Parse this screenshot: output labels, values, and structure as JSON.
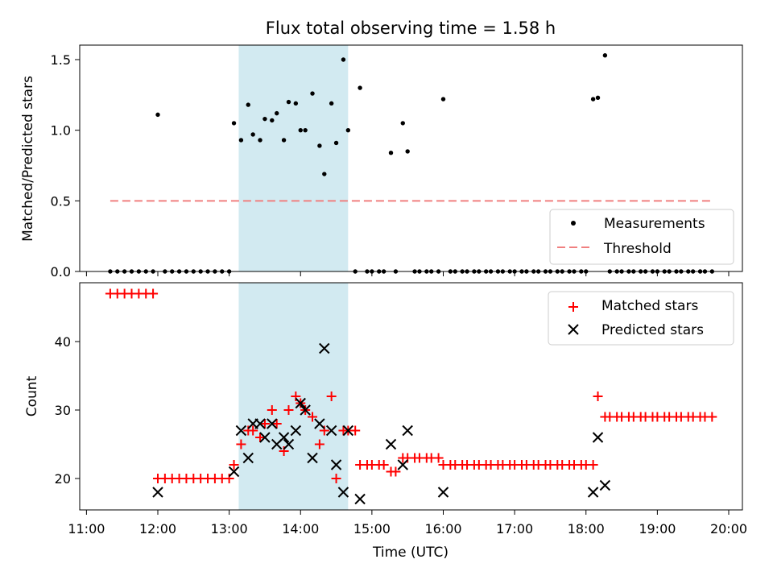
{
  "chart_data": [
    {
      "type": "scatter",
      "title": "Flux total observing time = 1.58 h",
      "xlabel": "",
      "ylabel": "Matched/Predicted stars",
      "xlim": [
        "11:00",
        "20:10"
      ],
      "ylim": [
        0,
        1.6
      ],
      "yticks": [
        "0.0",
        "0.5",
        "1.0",
        "1.5"
      ],
      "grid": false,
      "legend_position": "lower-right",
      "shaded_interval": {
        "start": "13:08",
        "end": "14:40",
        "color": "#add8e6"
      },
      "series": [
        {
          "name": "Measurements",
          "marker": "dot",
          "color": "#000000",
          "x": [
            "11:20",
            "11:26",
            "11:32",
            "11:38",
            "11:44",
            "11:50",
            "11:56",
            "12:00",
            "12:06",
            "12:12",
            "12:18",
            "12:24",
            "12:30",
            "12:36",
            "12:42",
            "12:48",
            "12:54",
            "13:00",
            "13:04",
            "13:10",
            "13:16",
            "13:20",
            "13:26",
            "13:30",
            "13:36",
            "13:40",
            "13:46",
            "13:50",
            "13:56",
            "14:00",
            "14:04",
            "14:10",
            "14:16",
            "14:20",
            "14:26",
            "14:30",
            "14:36",
            "14:40",
            "14:46",
            "14:50",
            "14:56",
            "15:00",
            "15:06",
            "15:10",
            "15:16",
            "15:20",
            "15:26",
            "15:30",
            "15:36",
            "15:40",
            "15:46",
            "15:50",
            "15:56",
            "16:00",
            "16:06",
            "16:10",
            "16:16",
            "16:20",
            "16:26",
            "16:30",
            "16:36",
            "16:40",
            "16:46",
            "16:50",
            "16:56",
            "17:00",
            "17:06",
            "17:10",
            "17:16",
            "17:20",
            "17:26",
            "17:30",
            "17:36",
            "17:40",
            "17:46",
            "17:50",
            "17:56",
            "18:00",
            "18:06",
            "18:10",
            "18:16",
            "18:20",
            "18:26",
            "18:30",
            "18:36",
            "18:40",
            "18:46",
            "18:50",
            "18:56",
            "19:00",
            "19:06",
            "19:10",
            "19:16",
            "19:20",
            "19:26",
            "19:30",
            "19:36",
            "19:40",
            "19:46"
          ],
          "values": [
            0,
            0,
            0,
            0,
            0,
            0,
            0,
            1.11,
            0,
            0,
            0,
            0,
            0,
            0,
            0,
            0,
            0,
            0,
            1.05,
            0.93,
            1.18,
            0.97,
            0.93,
            1.08,
            1.07,
            1.12,
            0.93,
            1.2,
            1.19,
            1.0,
            1.0,
            1.26,
            0.89,
            0.69,
            1.19,
            0.91,
            1.5,
            1.0,
            0,
            1.3,
            0,
            0,
            0,
            0,
            0.84,
            0,
            1.05,
            0.85,
            0,
            0,
            0,
            0,
            0,
            1.22,
            0,
            0,
            0,
            0,
            0,
            0,
            0,
            0,
            0,
            0,
            0,
            0,
            0,
            0,
            0,
            0,
            0,
            0,
            0,
            0,
            0,
            0,
            0,
            0,
            1.22,
            1.23,
            1.53,
            0,
            0,
            0,
            0,
            0,
            0,
            0,
            0,
            0,
            0,
            0,
            0,
            0,
            0,
            0,
            0,
            0,
            0
          ]
        },
        {
          "name": "Threshold",
          "marker": "dashed-line",
          "color": "#f08080",
          "x": [
            "11:20",
            "19:46"
          ],
          "values": [
            0.5,
            0.5
          ]
        }
      ]
    },
    {
      "type": "scatter",
      "title": "",
      "xlabel": "Time (UTC)",
      "ylabel": "Count",
      "xlim": [
        "11:00",
        "20:10"
      ],
      "ylim": [
        15.5,
        49
      ],
      "xticks": [
        "11:00",
        "12:00",
        "13:00",
        "14:00",
        "15:00",
        "16:00",
        "17:00",
        "18:00",
        "19:00",
        "20:00"
      ],
      "yticks": [
        "20",
        "30",
        "40"
      ],
      "grid": false,
      "legend_position": "top-right",
      "shaded_interval": {
        "start": "13:08",
        "end": "14:40",
        "color": "#add8e6"
      },
      "series": [
        {
          "name": "Matched stars",
          "marker": "plus",
          "color": "#ff0000",
          "x": [
            "11:20",
            "11:26",
            "11:32",
            "11:38",
            "11:44",
            "11:50",
            "11:56",
            "12:00",
            "12:06",
            "12:12",
            "12:18",
            "12:24",
            "12:30",
            "12:36",
            "12:42",
            "12:48",
            "12:54",
            "13:00",
            "13:04",
            "13:10",
            "13:16",
            "13:20",
            "13:26",
            "13:30",
            "13:36",
            "13:40",
            "13:46",
            "13:50",
            "13:56",
            "14:00",
            "14:04",
            "14:10",
            "14:16",
            "14:20",
            "14:26",
            "14:30",
            "14:36",
            "14:40",
            "14:46",
            "14:50",
            "14:56",
            "15:00",
            "15:06",
            "15:10",
            "15:16",
            "15:20",
            "15:26",
            "15:30",
            "15:36",
            "15:40",
            "15:46",
            "15:50",
            "15:56",
            "16:00",
            "16:06",
            "16:10",
            "16:16",
            "16:20",
            "16:26",
            "16:30",
            "16:36",
            "16:40",
            "16:46",
            "16:50",
            "16:56",
            "17:00",
            "17:06",
            "17:10",
            "17:16",
            "17:20",
            "17:26",
            "17:30",
            "17:36",
            "17:40",
            "17:46",
            "17:50",
            "17:56",
            "18:00",
            "18:06",
            "18:10",
            "18:16",
            "18:20",
            "18:26",
            "18:30",
            "18:36",
            "18:40",
            "18:46",
            "18:50",
            "18:56",
            "19:00",
            "19:06",
            "19:10",
            "19:16",
            "19:20",
            "19:26",
            "19:30",
            "19:36",
            "19:40",
            "19:46"
          ],
          "values": [
            47,
            47,
            47,
            47,
            47,
            47,
            47,
            20,
            20,
            20,
            20,
            20,
            20,
            20,
            20,
            20,
            20,
            20,
            22,
            25,
            27,
            27,
            26,
            28,
            30,
            28,
            24,
            30,
            32,
            31,
            30,
            29,
            25,
            27,
            32,
            20,
            27,
            27,
            27,
            22,
            22,
            22,
            22,
            22,
            21,
            21,
            23,
            23,
            23,
            23,
            23,
            23,
            23,
            22,
            22,
            22,
            22,
            22,
            22,
            22,
            22,
            22,
            22,
            22,
            22,
            22,
            22,
            22,
            22,
            22,
            22,
            22,
            22,
            22,
            22,
            22,
            22,
            22,
            22,
            32,
            29,
            29,
            29,
            29,
            29,
            29,
            29,
            29,
            29,
            29,
            29,
            29,
            29,
            29,
            29,
            29,
            29,
            29,
            29
          ]
        },
        {
          "name": "Predicted stars",
          "marker": "x",
          "color": "#000000",
          "x": [
            "12:00",
            "13:04",
            "13:10",
            "13:16",
            "13:20",
            "13:26",
            "13:30",
            "13:36",
            "13:40",
            "13:46",
            "13:50",
            "13:56",
            "14:00",
            "14:04",
            "14:10",
            "14:16",
            "14:20",
            "14:26",
            "14:30",
            "14:36",
            "14:40",
            "14:50",
            "15:16",
            "15:26",
            "15:30",
            "16:00",
            "18:06",
            "18:10",
            "18:16"
          ],
          "values": [
            18,
            21,
            27,
            23,
            28,
            28,
            26,
            28,
            25,
            26,
            25,
            27,
            31,
            30,
            23,
            28,
            39,
            27,
            22,
            18,
            27,
            17,
            25,
            22,
            27,
            18,
            18,
            26,
            19
          ]
        }
      ]
    }
  ]
}
